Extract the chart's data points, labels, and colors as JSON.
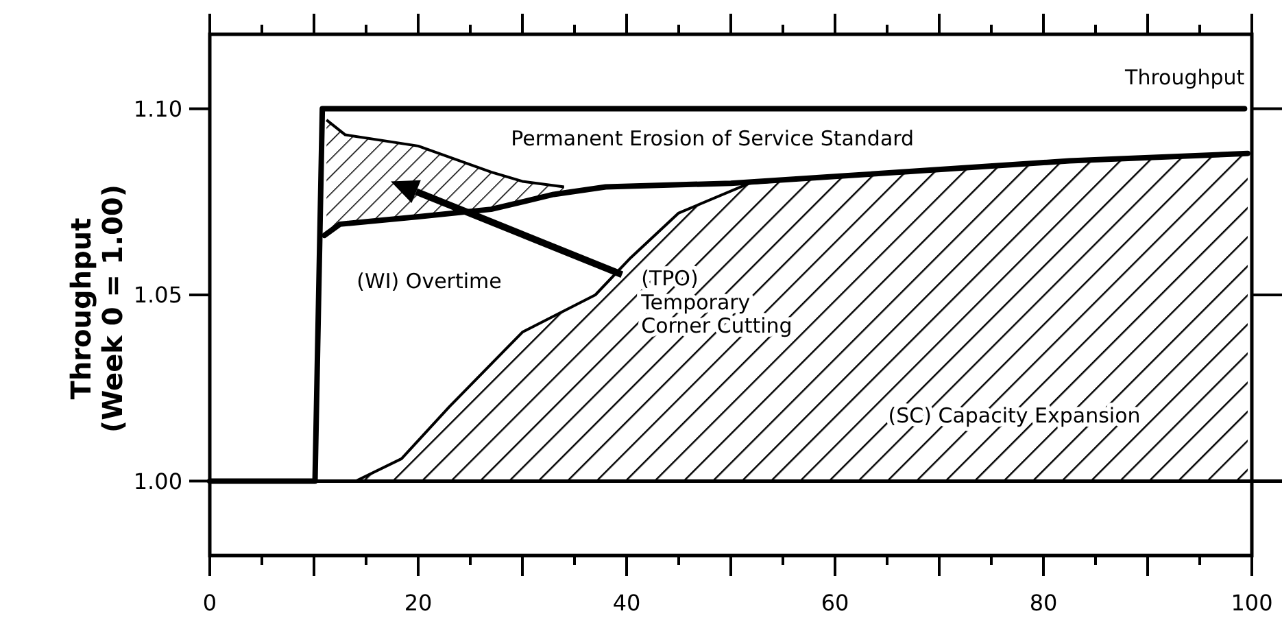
{
  "chart_data": {
    "type": "line",
    "ylabel": "Throughput\n(Week 0 = 1.00)",
    "xlim": [
      0,
      100
    ],
    "ylim": [
      0.98,
      1.12
    ],
    "xticks": [
      0,
      {
        "value": 5,
        "label": null
      },
      {
        "value": 10,
        "label": null
      },
      {
        "value": 15,
        "label": null
      },
      20,
      {
        "value": 25,
        "label": null
      },
      {
        "value": 30,
        "label": null
      },
      {
        "value": 35,
        "label": null
      },
      40,
      {
        "value": 45,
        "label": null
      },
      {
        "value": 50,
        "label": null
      },
      {
        "value": 55,
        "label": null
      },
      60,
      {
        "value": 65,
        "label": null
      },
      {
        "value": 70,
        "label": null
      },
      {
        "value": 75,
        "label": null
      },
      80,
      {
        "value": 85,
        "label": null
      },
      {
        "value": 90,
        "label": null
      },
      {
        "value": 95,
        "label": null
      },
      100
    ],
    "yticks": [
      {
        "value": 1,
        "label": "1.00"
      },
      1.05,
      {
        "value": 1.1,
        "label": "1.10"
      }
    ],
    "grid": false,
    "legend": false,
    "marker": "none",
    "line_style": "solid",
    "ref_lines": [
      {
        "axis": "y",
        "value": 1,
        "color": "#000000"
      }
    ],
    "series": [
      {
        "name": "Throughput",
        "color": "#000000",
        "x": [
          0,
          10.1,
          10.8,
          99.3
        ],
        "values": [
          1,
          1,
          1.1,
          1.1
        ]
      },
      {
        "type": "area",
        "color": "#000000",
        "x": [
          11.2,
          13,
          20,
          27,
          30,
          34
        ],
        "values": [
          1.097,
          1.093,
          1.09,
          1.083,
          1.0805,
          1.079
        ]
      },
      {
        "color": "#000000",
        "x": [
          11,
          12.5,
          20,
          27,
          33,
          38,
          50,
          61,
          82.5,
          99.6
        ],
        "values": [
          1.066,
          1.069,
          1.071,
          1.073,
          1.077,
          1.079,
          1.08,
          1.082,
          1.086,
          1.088
        ]
      },
      {
        "type": "area",
        "color": "#000000",
        "x": [
          14,
          18.4,
          23,
          30,
          37,
          40.4,
          45,
          51.8,
          61,
          82.5,
          99.6
        ],
        "values": [
          1,
          1.006,
          1.02,
          1.04,
          1.05,
          1.06,
          1.072,
          1.08,
          1.082,
          1.086,
          1.088
        ]
      }
    ],
    "annotations": [
      "Permanent Erosion of Service Standard",
      "(WI) Overtime",
      "(TPO)\nTemporary\nCorner Cutting",
      "(SC) Capacity Expansion"
    ]
  }
}
